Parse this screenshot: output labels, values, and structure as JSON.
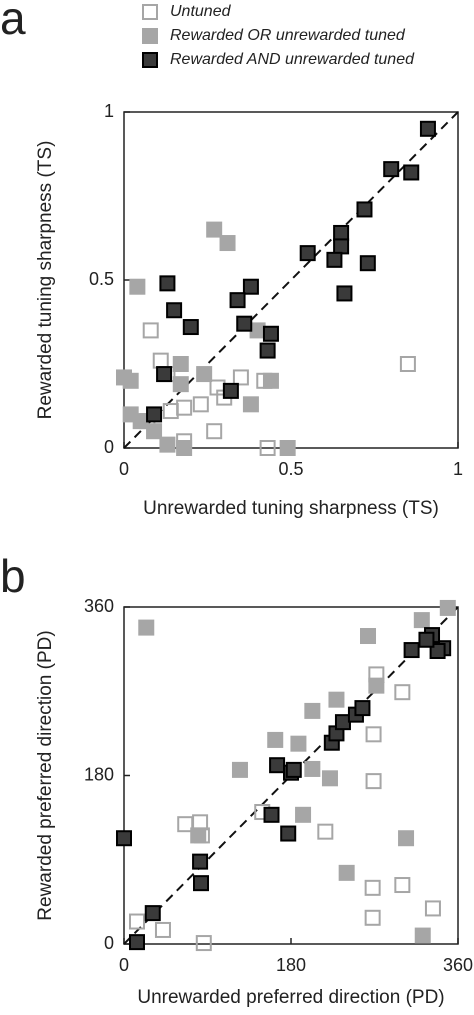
{
  "chart_data": [
    {
      "type": "scatter",
      "panel_label": "a",
      "xlabel": "Unrewarded tuning sharpness (TS)",
      "ylabel": "Rewarded tuning sharpness (TS)",
      "xlim": [
        0,
        1
      ],
      "ylim": [
        0,
        1
      ],
      "xticks": [
        0,
        0.5,
        1
      ],
      "yticks": [
        0,
        0.5,
        1
      ],
      "diagonal": true,
      "series": [
        {
          "name": "Untuned",
          "color": "none",
          "edgecolor": "#a6a6a6",
          "x": [
            0.85,
            0.08,
            0.11,
            0.13,
            0.28,
            0.35,
            0.3,
            0.23,
            0.18,
            0.14,
            0.07,
            0.27,
            0.18,
            0.43,
            0.42
          ],
          "values": [
            0.25,
            0.35,
            0.26,
            0.22,
            0.18,
            0.21,
            0.15,
            0.13,
            0.12,
            0.11,
            0.08,
            0.05,
            0.02,
            0.0,
            0.2
          ]
        },
        {
          "name": "Rewarded OR unrewarded tuned",
          "color": "#a6a6a6",
          "edgecolor": "#a6a6a6",
          "x": [
            0.27,
            0.31,
            0.04,
            0.0,
            0.02,
            0.17,
            0.17,
            0.24,
            0.44,
            0.38,
            0.02,
            0.05,
            0.09,
            0.13,
            0.18,
            0.49,
            0.4
          ],
          "values": [
            0.65,
            0.61,
            0.48,
            0.21,
            0.2,
            0.25,
            0.19,
            0.22,
            0.2,
            0.13,
            0.1,
            0.08,
            0.05,
            0.01,
            0.0,
            0.0,
            0.35
          ]
        },
        {
          "name": "Rewarded AND unrewarded tuned",
          "color": "#3a3a3a",
          "edgecolor": "#000000",
          "x": [
            0.91,
            0.8,
            0.86,
            0.72,
            0.65,
            0.65,
            0.55,
            0.63,
            0.73,
            0.66,
            0.13,
            0.15,
            0.2,
            0.38,
            0.34,
            0.36,
            0.44,
            0.43,
            0.12,
            0.32,
            0.09
          ],
          "values": [
            0.95,
            0.83,
            0.82,
            0.71,
            0.64,
            0.6,
            0.58,
            0.56,
            0.55,
            0.46,
            0.49,
            0.41,
            0.36,
            0.48,
            0.44,
            0.37,
            0.34,
            0.29,
            0.22,
            0.17,
            0.1
          ]
        }
      ]
    },
    {
      "type": "scatter",
      "panel_label": "b",
      "xlabel": "Unrewarded preferred direction (PD)",
      "ylabel": "Rewarded preferred direction (PD)",
      "xlim": [
        0,
        360
      ],
      "ylim": [
        0,
        360
      ],
      "xticks": [
        0,
        180,
        360
      ],
      "yticks": [
        0,
        180,
        360
      ],
      "diagonal": true,
      "series": [
        {
          "color": "none",
          "edgecolor": "#a6a6a6",
          "x": [
            272,
            300,
            269,
            269,
            149,
            66,
            82,
            84,
            217,
            300,
            333,
            268,
            14,
            42,
            86,
            268
          ],
          "values": [
            288,
            269,
            224,
            174,
            141,
            128,
            130,
            116,
            120,
            63,
            38,
            60,
            24,
            15,
            1,
            28
          ]
        },
        {
          "color": "#a6a6a6",
          "edgecolor": "#a6a6a6",
          "x": [
            24,
            349,
            321,
            263,
            272,
            229,
            203,
            188,
            163,
            203,
            125,
            222,
            80,
            193,
            304,
            240,
            322
          ],
          "values": [
            338,
            359,
            346,
            329,
            276,
            261,
            249,
            214,
            218,
            187,
            186,
            177,
            116,
            138,
            113,
            76,
            9
          ]
        },
        {
          "color": "#3a3a3a",
          "edgecolor": "#000000",
          "x": [
            0,
            14,
            31,
            82,
            83,
            165,
            180,
            183,
            159,
            177,
            224,
            229,
            236,
            250,
            257,
            344,
            338,
            332,
            326,
            310
          ],
          "values": [
            113,
            2,
            33,
            88,
            65,
            191,
            183,
            186,
            138,
            118,
            215,
            225,
            237,
            245,
            252,
            316,
            313,
            330,
            325,
            314
          ]
        }
      ]
    }
  ]
}
